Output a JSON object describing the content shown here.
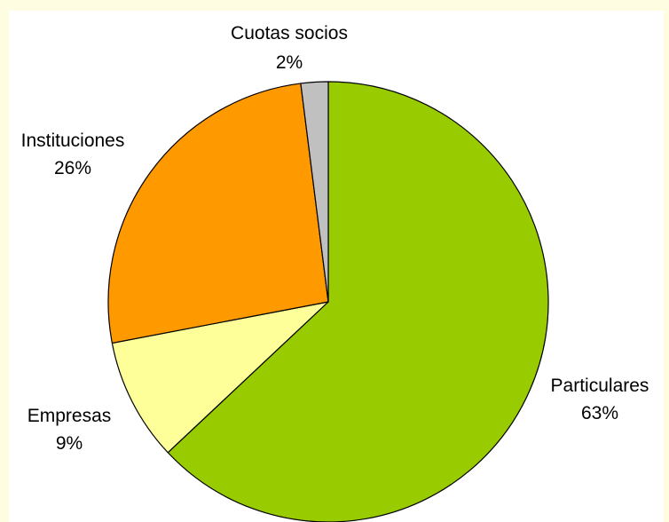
{
  "chart_data": {
    "type": "pie",
    "title": "",
    "start_angle_deg": 0,
    "direction": "clockwise",
    "slices": [
      {
        "label": "Particulares",
        "value": 63,
        "value_label": "63%",
        "color": "#99CC00"
      },
      {
        "label": "Empresas",
        "value": 9,
        "value_label": "9%",
        "color": "#FFFF99"
      },
      {
        "label": "Instituciones",
        "value": 26,
        "value_label": "26%",
        "color": "#FF9900"
      },
      {
        "label": "Cuotas socios",
        "value": 2,
        "value_label": "2%",
        "color": "#C0C0C0"
      }
    ],
    "data_labels": "category and percentage, outside slices",
    "legend": "none",
    "page_background": "#FFFDE1",
    "plot_background": "#FFFFFF"
  }
}
